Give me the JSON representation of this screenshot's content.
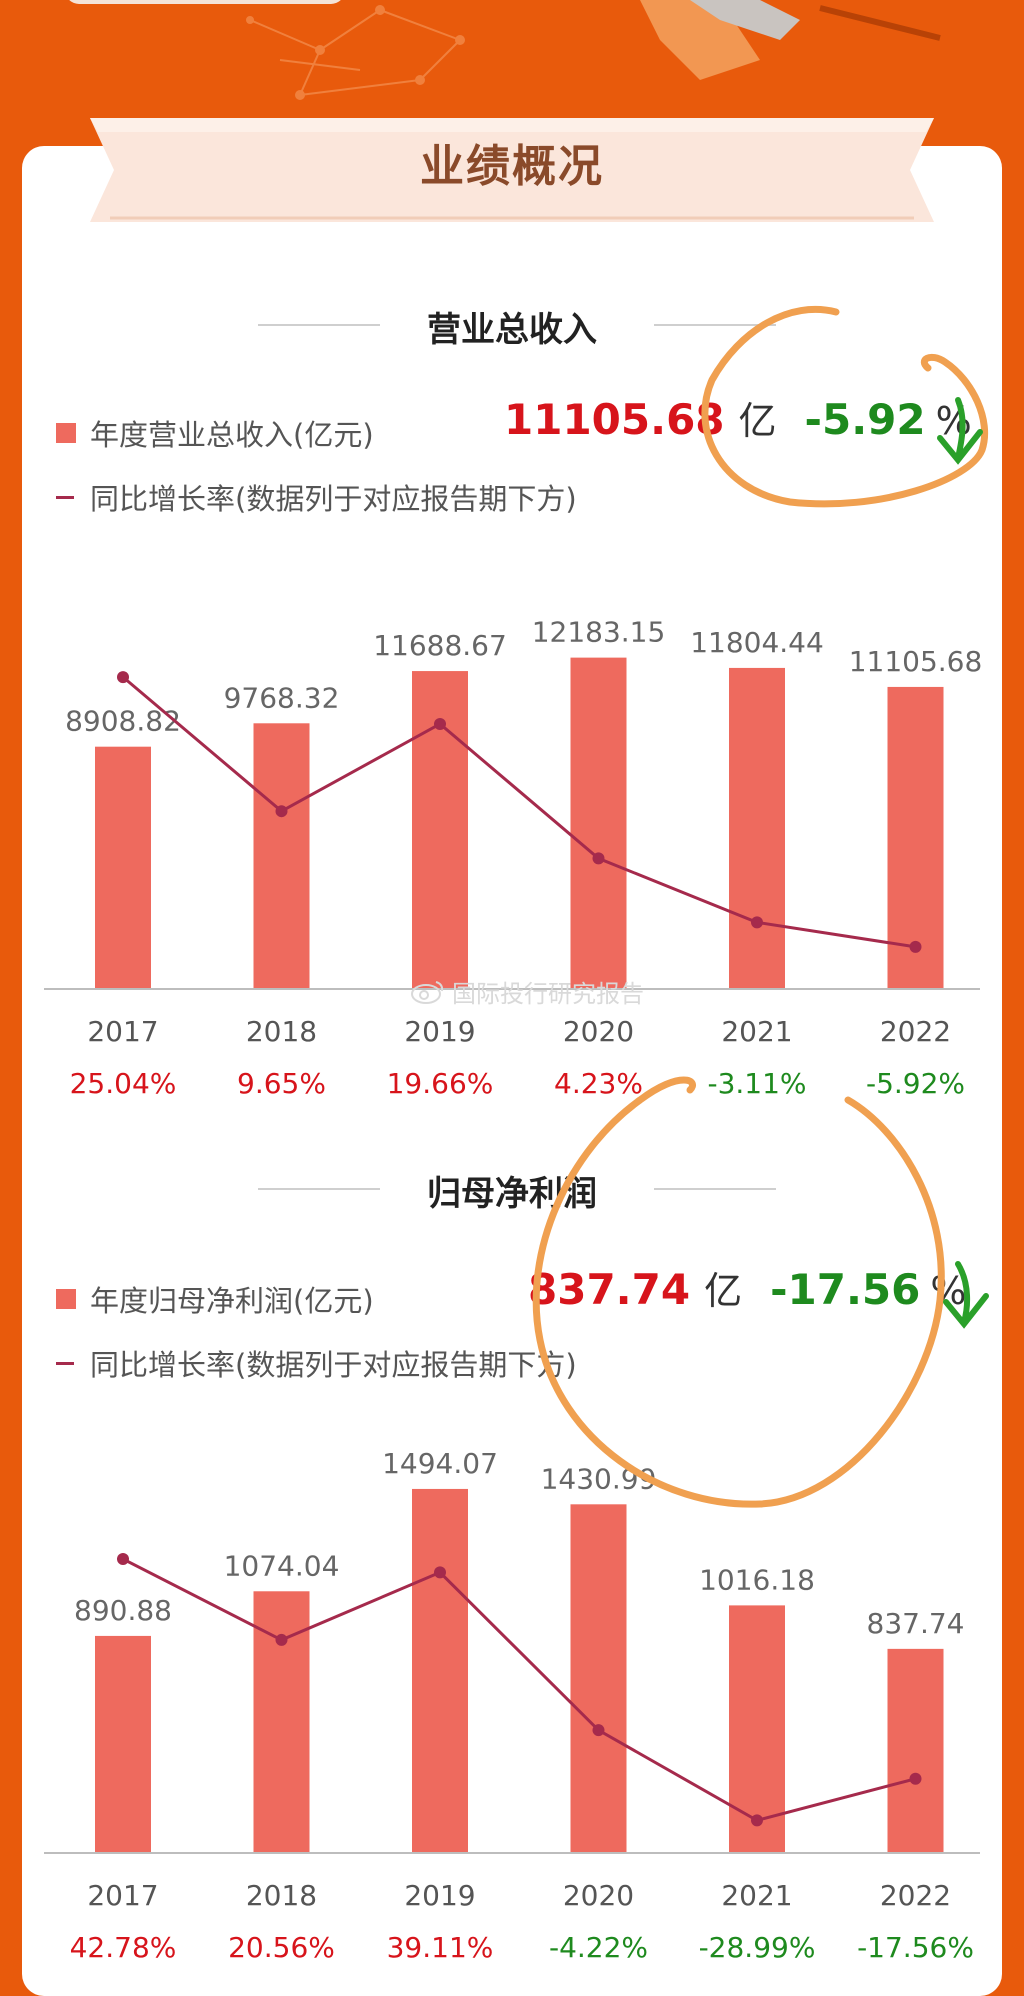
{
  "header": {
    "title": "业绩概况"
  },
  "watermark": "国际投行研究报告",
  "colors": {
    "bar": "#ee6a5e",
    "line": "#a52a4c",
    "positive": "#d7141b",
    "negative": "#1e8a1e",
    "axis_label": "#555555"
  },
  "revenue": {
    "section_title": "营业总收入",
    "legend_bar": "年度营业总收入(亿元)",
    "legend_line": "同比增长率(数据列于对应报告期下方)",
    "highlight_value": "11105.68",
    "highlight_unit": "亿",
    "highlight_pct": "-5.92",
    "highlight_pct_sign": "%"
  },
  "profit": {
    "section_title": "归母净利润",
    "legend_bar": "年度归母净利润(亿元)",
    "legend_line": "同比增长率(数据列于对应报告期下方)",
    "highlight_value": "837.74",
    "highlight_unit": "亿",
    "highlight_pct": "-17.56",
    "highlight_pct_sign": "%"
  },
  "chart_data": [
    {
      "type": "bar",
      "categories": [
        "2017",
        "2018",
        "2019",
        "2020",
        "2021",
        "2022"
      ],
      "series": [
        {
          "name": "年度营业总收入(亿元)",
          "values": [
            8908.82,
            9768.32,
            11688.67,
            12183.15,
            11804.44,
            11105.68
          ]
        },
        {
          "name": "同比增长率(数据列于对应报告期下方)",
          "values": [
            25.04,
            9.65,
            19.66,
            4.23,
            -3.11,
            -5.92
          ]
        }
      ],
      "bar_labels": [
        "8908.82",
        "9768.32",
        "11688.67",
        "12183.15",
        "11804.44",
        "11105.68"
      ],
      "growth_labels": [
        "25.04%",
        "9.65%",
        "19.66%",
        "4.23%",
        "-3.11%",
        "-5.92%"
      ],
      "ylim": [
        0,
        12500
      ],
      "growth_range": [
        -8,
        27
      ]
    },
    {
      "type": "bar",
      "categories": [
        "2017",
        "2018",
        "2019",
        "2020",
        "2021",
        "2022"
      ],
      "series": [
        {
          "name": "年度归母净利润(亿元)",
          "values": [
            890.88,
            1074.04,
            1494.07,
            1430.99,
            1016.18,
            837.74
          ]
        },
        {
          "name": "同比增长率(数据列于对应报告期下方)",
          "values": [
            42.78,
            20.56,
            39.11,
            -4.22,
            -28.99,
            -17.56
          ]
        }
      ],
      "bar_labels": [
        "890.88",
        "1074.04",
        "1494.07",
        "1430.99",
        "1016.18",
        "837.74"
      ],
      "growth_labels": [
        "42.78%",
        "20.56%",
        "39.11%",
        "-4.22%",
        "-28.99%",
        "-17.56%"
      ],
      "ylim": [
        0,
        1580
      ],
      "growth_range": [
        -33,
        48
      ]
    }
  ]
}
